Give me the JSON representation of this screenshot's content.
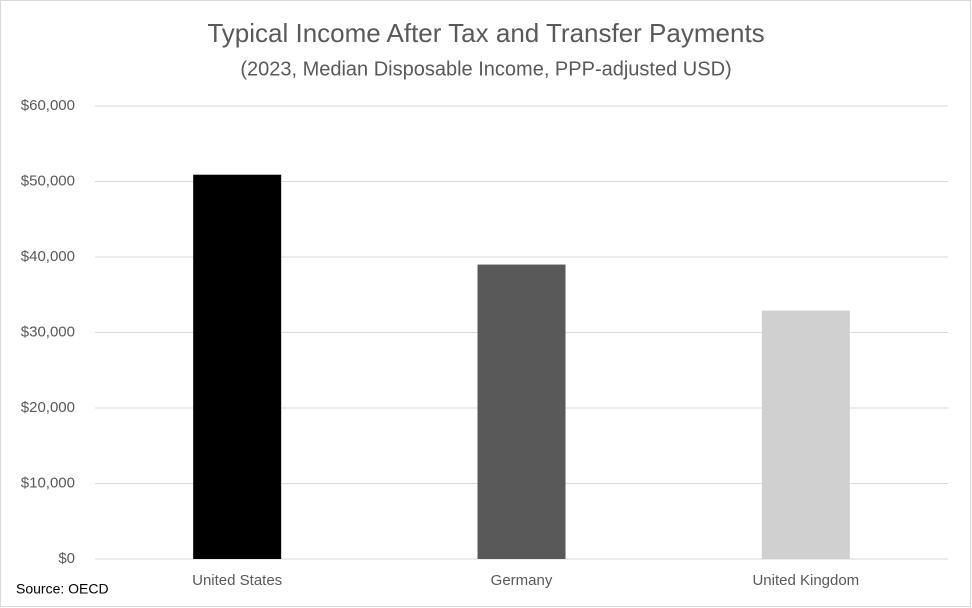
{
  "chart_data": {
    "type": "bar",
    "title": "Typical Income After Tax and Transfer Payments",
    "subtitle": "(2023, Median Disposable Income, PPP-adjusted USD)",
    "source": "Source: OECD",
    "categories": [
      "United States",
      "Germany",
      "United Kingdom"
    ],
    "values": [
      50900,
      39000,
      32900
    ],
    "colors": [
      "#000000",
      "#595959",
      "#d0d0d0"
    ],
    "ylim": [
      0,
      60000
    ],
    "yticks": [
      {
        "value": 0,
        "label": "$0"
      },
      {
        "value": 10000,
        "label": "$10,000"
      },
      {
        "value": 20000,
        "label": "$20,000"
      },
      {
        "value": 30000,
        "label": "$30,000"
      },
      {
        "value": 40000,
        "label": "$40,000"
      },
      {
        "value": 50000,
        "label": "$50,000"
      },
      {
        "value": 60000,
        "label": "$60,000"
      }
    ],
    "grid": true
  }
}
